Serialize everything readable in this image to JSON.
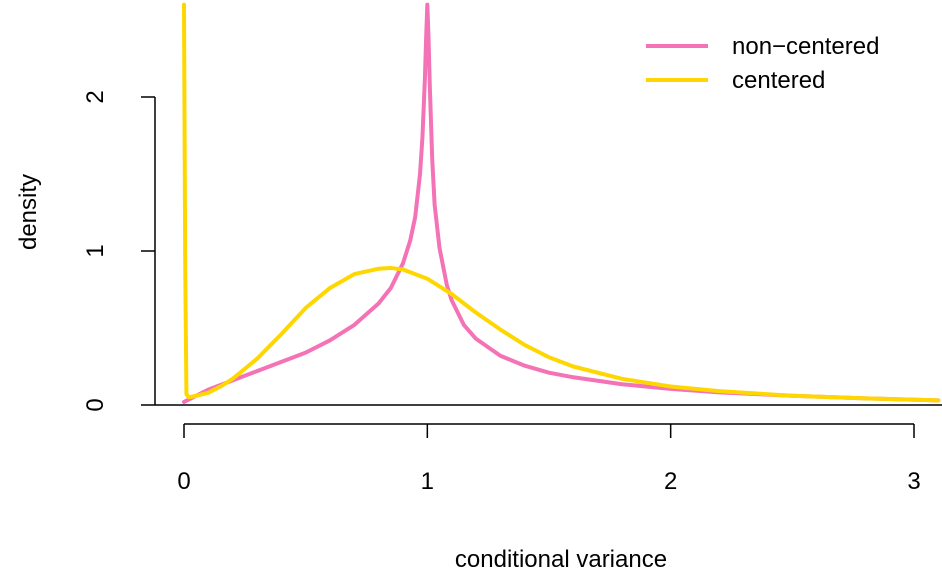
{
  "chart_data": {
    "type": "line",
    "xlabel": "conditional variance",
    "ylabel": "density",
    "xlim": [
      0,
      3.1
    ],
    "ylim": [
      0,
      2.6
    ],
    "x_ticks": [
      0,
      1,
      2,
      3
    ],
    "x_tick_labels": [
      "0",
      "1",
      "2",
      "3"
    ],
    "y_ticks": [
      0,
      1,
      2
    ],
    "y_tick_labels": [
      "0",
      "1",
      "2"
    ],
    "grid": false,
    "legend_position": "top-right",
    "series": [
      {
        "name": "non−centered",
        "color": "#F472B6",
        "x": [
          0.0,
          0.05,
          0.1,
          0.2,
          0.3,
          0.4,
          0.5,
          0.6,
          0.7,
          0.8,
          0.85,
          0.9,
          0.93,
          0.95,
          0.97,
          0.98,
          0.99,
          0.995,
          1.0,
          1.005,
          1.01,
          1.02,
          1.03,
          1.05,
          1.08,
          1.1,
          1.15,
          1.2,
          1.3,
          1.4,
          1.5,
          1.6,
          1.8,
          2.0,
          2.2,
          2.5,
          2.8,
          3.1
        ],
        "y": [
          0.02,
          0.06,
          0.1,
          0.16,
          0.22,
          0.28,
          0.34,
          0.42,
          0.52,
          0.66,
          0.76,
          0.92,
          1.07,
          1.22,
          1.5,
          1.74,
          2.12,
          2.38,
          2.6,
          2.38,
          2.08,
          1.6,
          1.3,
          1.02,
          0.78,
          0.68,
          0.52,
          0.43,
          0.32,
          0.255,
          0.21,
          0.18,
          0.135,
          0.105,
          0.082,
          0.06,
          0.043,
          0.03
        ]
      },
      {
        "name": "centered",
        "color": "#FFD700",
        "x": [
          0.0,
          0.005,
          0.01,
          0.02,
          0.05,
          0.1,
          0.15,
          0.2,
          0.3,
          0.4,
          0.5,
          0.6,
          0.7,
          0.8,
          0.85,
          0.9,
          1.0,
          1.1,
          1.2,
          1.3,
          1.4,
          1.5,
          1.6,
          1.8,
          2.0,
          2.2,
          2.5,
          2.8,
          3.1
        ],
        "y": [
          2.6,
          0.9,
          0.07,
          0.05,
          0.06,
          0.08,
          0.12,
          0.17,
          0.3,
          0.46,
          0.63,
          0.76,
          0.85,
          0.885,
          0.89,
          0.88,
          0.82,
          0.72,
          0.6,
          0.49,
          0.39,
          0.31,
          0.25,
          0.17,
          0.12,
          0.09,
          0.06,
          0.043,
          0.03
        ]
      }
    ]
  }
}
